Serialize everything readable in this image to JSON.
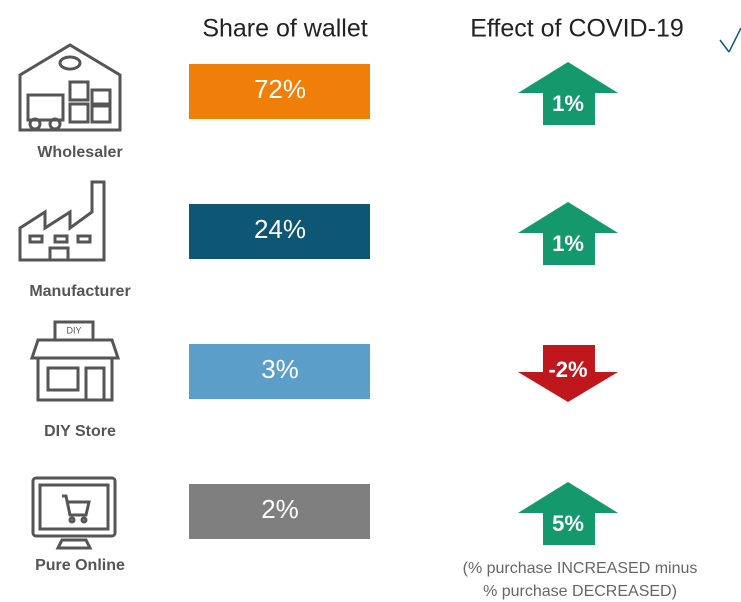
{
  "header": {
    "share": "Share of wallet",
    "effect": "Effect of COVID-19"
  },
  "rows": [
    {
      "channel": "Wholesaler",
      "share": "72%",
      "effect": "1%",
      "direction": "up",
      "bar_color": "#f07f09",
      "effect_color": "#13996b"
    },
    {
      "channel": "Manufacturer",
      "share": "24%",
      "effect": "1%",
      "direction": "up",
      "bar_color": "#0e5774",
      "effect_color": "#13996b"
    },
    {
      "channel": "DIY Store",
      "share": "3%",
      "effect": "-2%",
      "direction": "down",
      "bar_color": "#5a9ec9",
      "effect_color": "#c0171c"
    },
    {
      "channel": "Pure Online",
      "share": "2%",
      "effect": "5%",
      "direction": "up",
      "bar_color": "#7f7f7f",
      "effect_color": "#13996b"
    }
  ],
  "icon_labels": {
    "diy": "DIY"
  },
  "note": [
    "(% purchase INCREASED minus",
    "% purchase DECREASED)"
  ]
}
